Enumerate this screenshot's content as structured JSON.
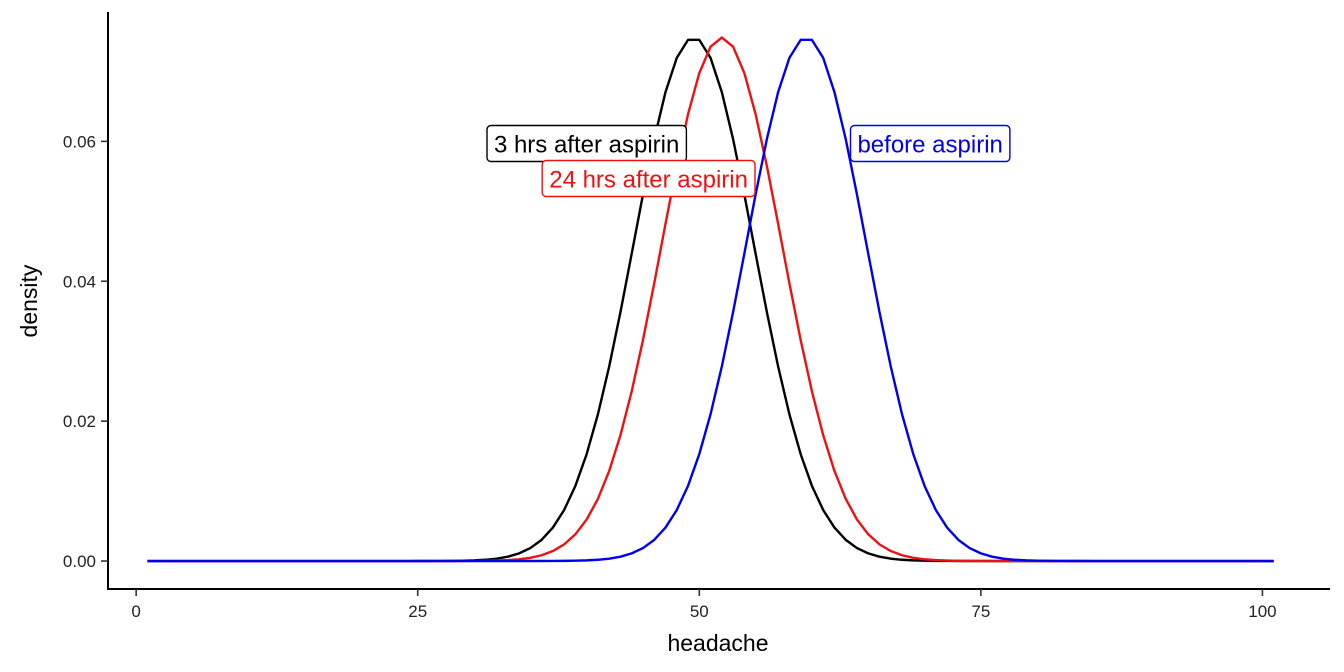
{
  "chart_data": {
    "type": "line",
    "title": "",
    "xlabel": "headache",
    "ylabel": "density",
    "xlim": [
      -2.5,
      106
    ],
    "ylim": [
      -0.004,
      0.0785
    ],
    "x_ticks": [
      0,
      25,
      50,
      75,
      100
    ],
    "x_tick_labels": [
      "0",
      "25",
      "50",
      "75",
      "100"
    ],
    "y_ticks": [
      0,
      0.02,
      0.04,
      0.06
    ],
    "y_tick_labels": [
      "0.00",
      "0.02",
      "0.04",
      "0.06"
    ],
    "grid": false,
    "x_range": [
      1,
      101
    ],
    "series": [
      {
        "name": "3 hrs after aspirin",
        "color": "#000000",
        "mean": 49.5,
        "sd": 5.33,
        "label_x": 40,
        "label_y": 0.0597
      },
      {
        "name": "24 hrs after aspirin",
        "color": "#ee1111",
        "mean": 52,
        "sd": 5.33,
        "label_x": 45.5,
        "label_y": 0.0547
      },
      {
        "name": "before aspirin",
        "color": "#0000ee",
        "mean": 59.5,
        "sd": 5.33,
        "label_x": 70.5,
        "label_y": 0.0597
      }
    ]
  }
}
